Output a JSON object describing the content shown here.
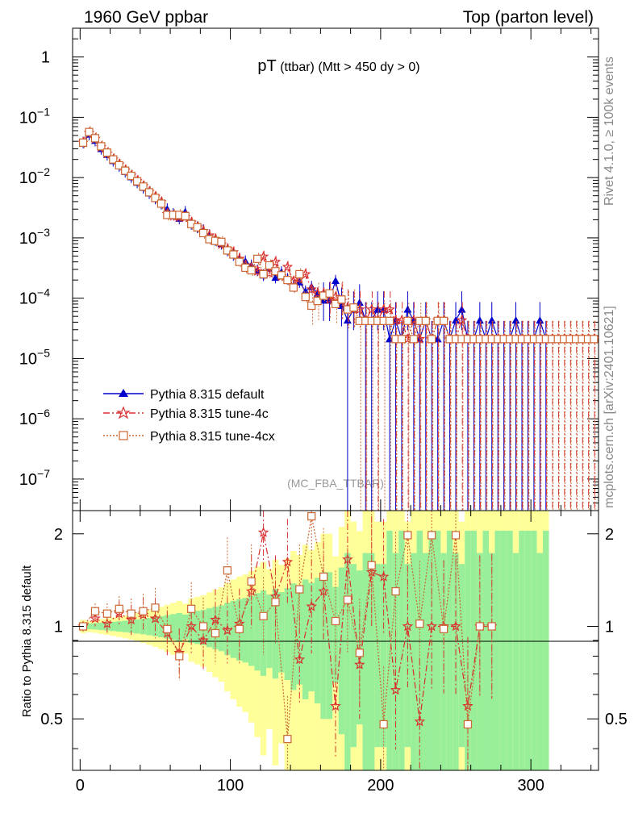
{
  "header": {
    "left": "1960 GeV ppbar",
    "right": "Top (parton level)"
  },
  "side": {
    "rivet": "Rivet 4.1.0, ≥ 100k events",
    "mcplots": "mcplots.cern.ch [arXiv:2401.10621]"
  },
  "chart_data": [
    {
      "type": "line",
      "panel": "main",
      "title_main": "pT",
      "title_sub": " (ttbar) (Mtt > 450 dy > 0)",
      "watermark": "(MC_FBA_TTBAR)",
      "yscale": "log",
      "ylim": [
        3e-08,
        3.0
      ],
      "xlim": [
        -5,
        345
      ],
      "y_ticks": [
        {
          "label": "1"
        },
        {
          "label": "10",
          "exp": "−1"
        },
        {
          "label": "10",
          "exp": "−2"
        },
        {
          "label": "10",
          "exp": "−3"
        },
        {
          "label": "10",
          "exp": "−4"
        },
        {
          "label": "10",
          "exp": "−5"
        },
        {
          "label": "10",
          "exp": "−6"
        },
        {
          "label": "10",
          "exp": "−7"
        }
      ],
      "legend_position": "bottom-left",
      "series": [
        {
          "name": "Pythia 8.315 default",
          "color": "#0000cc",
          "marker": "triangle",
          "x": [
            2,
            6,
            10,
            14,
            18,
            22,
            26,
            30,
            34,
            38,
            42,
            46,
            50,
            54,
            58,
            62,
            66,
            70,
            74,
            78,
            82,
            86,
            90,
            94,
            98,
            102,
            106,
            110,
            114,
            118,
            122,
            126,
            130,
            134,
            138,
            142,
            146,
            150,
            154,
            158,
            162,
            166,
            170,
            174,
            178,
            182,
            186,
            190,
            194,
            198,
            202,
            206,
            210,
            214,
            218,
            222,
            226,
            230,
            234,
            238,
            242,
            246,
            250,
            254,
            258,
            262,
            266,
            270,
            274,
            278,
            282,
            286,
            290,
            294,
            298,
            302,
            306,
            310
          ],
          "y": [
            0.038,
            0.052,
            0.041,
            0.03,
            0.024,
            0.019,
            0.0155,
            0.0125,
            0.0102,
            0.0083,
            0.0068,
            0.0055,
            0.0045,
            0.0037,
            0.003,
            0.0025,
            0.0021,
            0.0027,
            0.0017,
            0.0015,
            0.00135,
            0.0011,
            0.00092,
            0.0008,
            0.00062,
            0.00052,
            0.00045,
            0.00041,
            0.00035,
            0.00029,
            0.00024,
            0.00032,
            0.00022,
            0.00027,
            0.00021,
            0.00016,
            0.000185,
            0.00013,
            0.000155,
            0.00012,
            9.2e-05,
            9.2e-05,
            0.000195,
            7.5e-05,
            4.3e-05,
            6.5e-05,
            8.5e-05,
            4.3e-05,
            4.3e-05,
            6.5e-05,
            6.5e-05,
            2.1e-05,
            4.3e-05,
            2.1e-05,
            6.5e-05,
            4.3e-05,
            2.1e-05,
            4.3e-05,
            2.1e-05,
            2.1e-05,
            4.3e-05,
            2.1e-05,
            4.3e-05,
            6.5e-05,
            2.1e-05,
            2.1e-05,
            4.3e-05,
            2.1e-05,
            4.3e-05,
            2.1e-05,
            2.1e-05,
            2.1e-05,
            4.3e-05,
            2.1e-05,
            2.1e-05,
            2.1e-05,
            4.3e-05,
            2.1e-05
          ]
        },
        {
          "name": "Pythia 8.315 tune-4c",
          "color": "#d93030",
          "marker": "star",
          "x": [
            2,
            6,
            10,
            14,
            18,
            22,
            26,
            30,
            34,
            38,
            42,
            46,
            50,
            54,
            58,
            62,
            66,
            70,
            74,
            78,
            82,
            86,
            90,
            94,
            98,
            102,
            106,
            110,
            114,
            118,
            122,
            126,
            130,
            134,
            138,
            142,
            146,
            150,
            154,
            158,
            162,
            166,
            170,
            174,
            178,
            182,
            186,
            190,
            194,
            198,
            202,
            206,
            210,
            214,
            218,
            222,
            226,
            230,
            234,
            238,
            242,
            246,
            250,
            254,
            258,
            262,
            266,
            270,
            274,
            278,
            282,
            286,
            290,
            294,
            298,
            302,
            306,
            310,
            314,
            318,
            322,
            326,
            330,
            334,
            338,
            342
          ],
          "y": [
            0.038,
            0.055,
            0.044,
            0.032,
            0.025,
            0.02,
            0.0165,
            0.0132,
            0.0108,
            0.0088,
            0.0072,
            0.0058,
            0.0048,
            0.0039,
            0.0025,
            0.0023,
            0.0022,
            0.0022,
            0.0018,
            0.0015,
            0.0013,
            0.0011,
            0.00095,
            0.00078,
            0.00065,
            0.00058,
            0.00045,
            0.00035,
            0.00032,
            0.00028,
            0.00049,
            0.00026,
            0.0004,
            0.00023,
            0.00033,
            0.00019,
            0.00021,
            0.00025,
            0.00014,
            0.00012,
            0.00012,
            9.5e-05,
            0.000105,
            9e-05,
            7e-05,
            6.5e-05,
            6.5e-05,
            4.3e-05,
            6.5e-05,
            4.3e-05,
            6.5e-05,
            6.5e-05,
            4.3e-05,
            4.3e-05,
            2.1e-05,
            4.3e-05,
            2.1e-05,
            4.3e-05,
            2.1e-05,
            4.3e-05,
            4.3e-05,
            2.1e-05,
            2.1e-05,
            4.3e-05,
            2.1e-05,
            2.1e-05,
            2.1e-05,
            2.1e-05,
            2.1e-05,
            2.1e-05,
            2.1e-05,
            2.1e-05,
            2.1e-05,
            2.1e-05,
            2.1e-05,
            2.1e-05,
            2.1e-05,
            2.1e-05,
            2.1e-05,
            2.1e-05,
            2.1e-05,
            2.1e-05,
            2.1e-05,
            2.1e-05,
            2.1e-05,
            2.1e-05
          ]
        },
        {
          "name": "Pythia 8.315 tune-4cx",
          "color": "#cc6633",
          "marker": "square",
          "x": [
            2,
            6,
            10,
            14,
            18,
            22,
            26,
            30,
            34,
            38,
            42,
            46,
            50,
            54,
            58,
            62,
            66,
            70,
            74,
            78,
            82,
            86,
            90,
            94,
            98,
            102,
            106,
            110,
            114,
            118,
            122,
            126,
            130,
            134,
            138,
            142,
            146,
            150,
            154,
            158,
            162,
            166,
            170,
            174,
            178,
            182,
            186,
            190,
            194,
            198,
            202,
            206,
            210,
            214,
            218,
            222,
            226,
            230,
            234,
            238,
            242,
            246,
            250,
            254,
            258,
            262,
            266,
            270,
            274,
            278,
            282,
            286,
            290,
            294,
            298,
            302,
            306,
            310,
            314,
            318,
            322,
            326,
            330,
            334,
            338,
            342
          ],
          "y": [
            0.038,
            0.057,
            0.045,
            0.033,
            0.026,
            0.02,
            0.016,
            0.013,
            0.0107,
            0.0087,
            0.0071,
            0.0057,
            0.0046,
            0.0037,
            0.0024,
            0.0024,
            0.0024,
            0.0023,
            0.0017,
            0.0015,
            0.0012,
            0.00095,
            0.00089,
            0.00086,
            0.00062,
            0.00053,
            0.0004,
            0.00032,
            0.00029,
            0.00045,
            0.00025,
            0.00035,
            0.00028,
            0.00024,
            0.0002,
            0.00015,
            0.00025,
            0.000105,
            7.5e-05,
            9e-05,
            0.00011,
            0.00012,
            8e-05,
            9.5e-05,
            6.5e-05,
            7e-05,
            4.2e-05,
            4.2e-05,
            4.2e-05,
            4.2e-05,
            4.2e-05,
            4.2e-05,
            2.1e-05,
            2.1e-05,
            4.2e-05,
            2.1e-05,
            4.2e-05,
            4.2e-05,
            2.1e-05,
            4.2e-05,
            4.2e-05,
            2.1e-05,
            2.1e-05,
            2.1e-05,
            2.1e-05,
            2.1e-05,
            2.1e-05,
            2.1e-05,
            2.1e-05,
            2.1e-05,
            2.1e-05,
            2.1e-05,
            2.1e-05,
            2.1e-05,
            2.1e-05,
            2.1e-05,
            2.1e-05,
            2.1e-05,
            2.1e-05,
            2.1e-05,
            2.1e-05,
            2.1e-05,
            2.1e-05,
            2.1e-05,
            2.1e-05,
            2.1e-05
          ]
        }
      ]
    },
    {
      "type": "line",
      "panel": "ratio",
      "ylabel": "Ratio to Pythia 8.315 default",
      "xlim": [
        -5,
        345
      ],
      "ylim": [
        0.34,
        2.38
      ],
      "y_ticks": [
        0.5,
        1,
        2
      ],
      "y_tick_labels": [
        "0.5",
        "1",
        "2"
      ],
      "x_ticks": [
        0,
        100,
        200,
        300
      ],
      "x_tick_labels": [
        "0",
        "100",
        "200",
        "300"
      ],
      "bands": [
        {
          "name": "green-1sigma",
          "color": "#99ee99"
        },
        {
          "name": "yellow-2sigma",
          "color": "#ffff99"
        }
      ],
      "series": [
        {
          "name": "Pythia 8.315 tune-4c",
          "color": "#d93030",
          "marker": "star",
          "x": [
            2,
            10,
            18,
            26,
            34,
            42,
            50,
            58,
            66,
            74,
            82,
            90,
            98,
            106,
            114,
            122,
            130,
            138,
            146,
            154,
            162,
            170,
            178,
            186,
            194,
            202,
            210,
            218,
            226,
            234,
            242,
            250,
            258,
            266,
            274
          ],
          "y": [
            1.0,
            1.06,
            1.02,
            1.1,
            1.05,
            1.09,
            1.06,
            0.95,
            0.82,
            1.0,
            0.9,
            1.05,
            0.97,
            1.02,
            1.3,
            2.02,
            1.25,
            1.62,
            0.78,
            1.16,
            1.3,
            0.55,
            1.65,
            0.75,
            1.5,
            1.45,
            0.62,
            1.0,
            0.49,
            1.0,
            1.0,
            1.0,
            0.55,
            1.0,
            1.0
          ]
        },
        {
          "name": "Pythia 8.315 tune-4cx",
          "color": "#cc6633",
          "marker": "square",
          "x": [
            2,
            10,
            18,
            26,
            34,
            42,
            50,
            58,
            66,
            74,
            82,
            90,
            98,
            106,
            114,
            122,
            130,
            138,
            146,
            154,
            162,
            170,
            178,
            186,
            194,
            202,
            210,
            218,
            226,
            234,
            242,
            250,
            258,
            266,
            274
          ],
          "y": [
            1.0,
            1.12,
            1.1,
            1.14,
            1.1,
            1.12,
            1.15,
            0.98,
            0.8,
            1.14,
            1.0,
            0.95,
            1.52,
            0.98,
            1.4,
            1.08,
            1.2,
            0.43,
            1.32,
            2.28,
            1.45,
            1.04,
            1.22,
            0.82,
            1.58,
            0.48,
            1.3,
            1.98,
            1.02,
            1.98,
            0.98,
            1.98,
            0.48,
            1.0,
            1.0
          ]
        }
      ]
    }
  ]
}
